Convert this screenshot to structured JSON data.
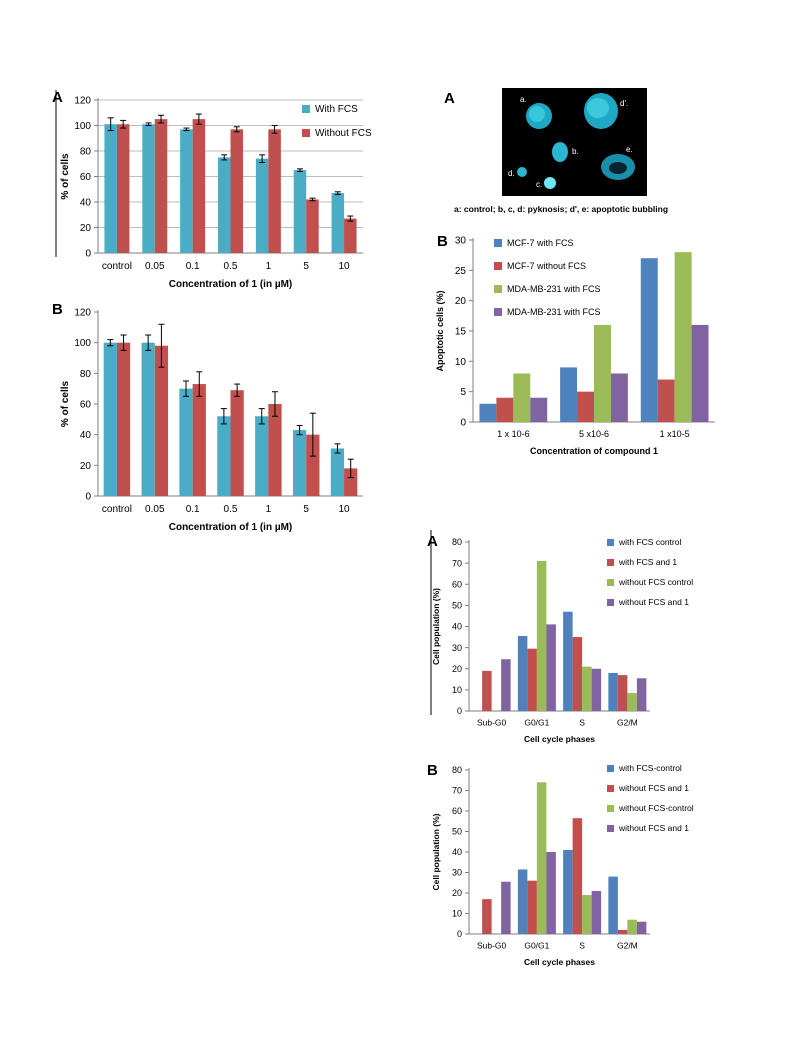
{
  "chart_data": [
    {
      "id": "viability_A",
      "type": "bar",
      "panel_letter": "A",
      "title": "",
      "xlabel": "Concentration of 1 (in µM)",
      "ylabel": "% of cells",
      "ylim": [
        0,
        120
      ],
      "yticks": [
        0,
        20,
        40,
        60,
        80,
        100,
        120
      ],
      "grid": true,
      "legend_position": "top-right",
      "categories": [
        "control",
        "0.05",
        "0.1",
        "0.5",
        "1",
        "5",
        "10"
      ],
      "series": [
        {
          "name": "With FCS",
          "color": "#4bacc6",
          "values": [
            101,
            101,
            97,
            75,
            74,
            65,
            47
          ],
          "errors": [
            5,
            1,
            1,
            2,
            3,
            1,
            1
          ]
        },
        {
          "name": "Without FCS",
          "color": "#c0504d",
          "values": [
            101,
            105,
            105,
            97,
            97,
            42,
            27
          ],
          "errors": [
            3,
            3,
            4,
            2,
            3,
            1,
            2
          ]
        }
      ]
    },
    {
      "id": "viability_B",
      "type": "bar",
      "panel_letter": "B",
      "title": "",
      "xlabel": "Concentration of 1 (in µM)",
      "ylabel": "% of cells",
      "ylim": [
        0,
        120
      ],
      "yticks": [
        0,
        20,
        40,
        60,
        80,
        100,
        120
      ],
      "grid": false,
      "categories": [
        "control",
        "0.05",
        "0.1",
        "0.5",
        "1",
        "5",
        "10"
      ],
      "series": [
        {
          "name": "",
          "color": "#4bacc6",
          "values": [
            100,
            100,
            70,
            52,
            52,
            43,
            31
          ],
          "errors": [
            2,
            5,
            5,
            5,
            5,
            3,
            3
          ]
        },
        {
          "name": "",
          "color": "#c0504d",
          "values": [
            100,
            98,
            73,
            69,
            60,
            40,
            18
          ],
          "errors": [
            5,
            14,
            8,
            4,
            8,
            14,
            6
          ]
        }
      ]
    },
    {
      "id": "apoptosis_B",
      "type": "bar",
      "panel_letter": "B",
      "title": "",
      "xlabel": "Concentration of compound 1",
      "ylabel": "Apoptotic cells (%)",
      "ylim": [
        0,
        30
      ],
      "yticks": [
        0,
        5,
        10,
        15,
        20,
        25,
        30
      ],
      "grid": false,
      "legend_position": "top-left",
      "categories": [
        "1 x 10-6",
        "5 x10-6",
        "1 x10-5"
      ],
      "series": [
        {
          "name": "MCF-7 with  FCS",
          "color": "#4f81bd",
          "values": [
            3,
            9,
            27
          ]
        },
        {
          "name": "MCF-7 without  FCS",
          "color": "#c0504d",
          "values": [
            4,
            5,
            7
          ]
        },
        {
          "name": "MDA-MB-231 with FCS",
          "color": "#9bbb59",
          "values": [
            8,
            16,
            28
          ]
        },
        {
          "name": "MDA-MB-231 with  FCS",
          "color": "#8064a2",
          "values": [
            4,
            8,
            16
          ]
        }
      ]
    },
    {
      "id": "cellcycle_A",
      "type": "bar",
      "panel_letter": "A",
      "title": "",
      "xlabel": "Cell cycle  phases",
      "ylabel": "Cell population (%)",
      "ylim": [
        0,
        80
      ],
      "yticks": [
        0,
        10,
        20,
        30,
        40,
        50,
        60,
        70,
        80
      ],
      "grid": false,
      "legend_position": "top-right",
      "categories": [
        "Sub-G0",
        "G0/G1",
        "S",
        "G2/M"
      ],
      "series": [
        {
          "name": "with FCS control",
          "color": "#4f81bd",
          "values": [
            0,
            35.5,
            47,
            18
          ]
        },
        {
          "name": "with FCS and 1",
          "color": "#c0504d",
          "values": [
            19,
            29.5,
            35,
            17
          ]
        },
        {
          "name": "without FCS control",
          "color": "#9bbb59",
          "values": [
            0,
            71,
            21,
            8.5
          ]
        },
        {
          "name": "without FCS and 1",
          "color": "#8064a2",
          "values": [
            24.5,
            41,
            20,
            15.5
          ]
        }
      ]
    },
    {
      "id": "cellcycle_B",
      "type": "bar",
      "panel_letter": "B",
      "title": "",
      "xlabel": "Cell cycle  phases",
      "ylabel": "Cell population (%)",
      "ylim": [
        0,
        80
      ],
      "yticks": [
        0,
        10,
        20,
        30,
        40,
        50,
        60,
        70,
        80
      ],
      "grid": false,
      "legend_position": "top-right",
      "categories": [
        "Sub-G0",
        "G0/G1",
        "S",
        "G2/M"
      ],
      "series": [
        {
          "name": "with FCS-control",
          "color": "#4f81bd",
          "values": [
            0,
            31.5,
            41,
            28
          ]
        },
        {
          "name": "without FCS and 1",
          "color": "#c0504d",
          "values": [
            17,
            26,
            56.5,
            2
          ]
        },
        {
          "name": "without FCS-control",
          "color": "#9bbb59",
          "values": [
            0,
            74,
            19,
            7
          ]
        },
        {
          "name": "without FCS and 1",
          "color": "#8064a2",
          "values": [
            25.5,
            40,
            21,
            6
          ]
        }
      ]
    }
  ],
  "micrograph": {
    "panel_letter": "A",
    "cell_labels": [
      "a.",
      "d'.",
      "b.",
      "e.",
      "d.",
      "c."
    ],
    "caption": "a: control; b, c, d: pyknosis; d', e: apoptotic bubbling",
    "background_color": "#000000",
    "cell_color": "#39c9df"
  }
}
